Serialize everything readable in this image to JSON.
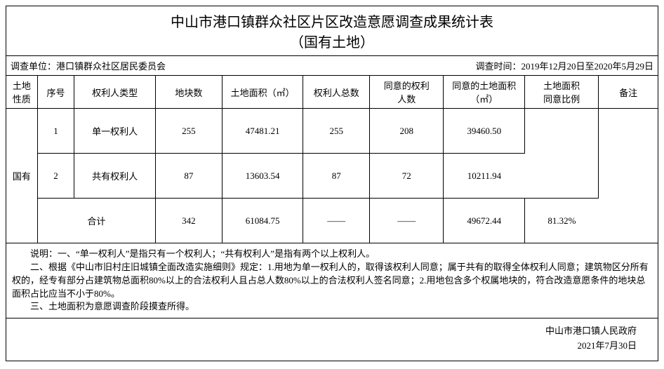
{
  "title": "中山市港口镇群众社区片区改造意愿调查成果统计表",
  "subtitle": "（国有土地）",
  "meta": {
    "survey_unit_label": "调查单位：港口镇群众社区居民委员会",
    "survey_time_label": "调查时间：2019年12月20日至2020年5月29日"
  },
  "headers": {
    "nature": "土地\n性质",
    "seq": "序号",
    "type": "权利人类型",
    "plots": "地块数",
    "area": "土地面积（㎡）",
    "total_owners": "权利人总数",
    "agree_owners": "同意的权利\n人数",
    "agree_area": "同意的土地面积\n（㎡）",
    "ratio": "土地面积\n同意比例",
    "note": "备注"
  },
  "nature_value": "国有",
  "rows": [
    {
      "seq": "1",
      "type": "单一权利人",
      "plots": "255",
      "area": "47481.21",
      "total": "255",
      "agree": "208",
      "agree_area": "39460.50",
      "ratio": "",
      "note": ""
    },
    {
      "seq": "2",
      "type": "共有权利人",
      "plots": "87",
      "area": "13603.54",
      "total": "87",
      "agree": "72",
      "agree_area": "10211.94",
      "ratio": "",
      "note": ""
    }
  ],
  "total_row": {
    "label": "合计",
    "plots": "342",
    "area": "61084.75",
    "total": "——",
    "agree": "——",
    "agree_area": "49672.44",
    "ratio": "81.32%",
    "note": ""
  },
  "notes": {
    "n1": "说明：一、“单一权利人”是指只有一个权利人；“共有权利人”是指有两个以上权利人。",
    "n2": "二、根据《中山市旧村庄旧城镇全面改造实施细则》规定：1.用地为单一权利人的，取得该权利人同意；属于共有的取得全体权利人同意；建筑物区分所有权的，经专有部分占建筑物总面积80%以上的合法权利人且占总人数80%以上的合法权利人签名同意；2.用地包含多个权属地块的，符合改造意愿条件的地块总面积占比应当不小于80%。",
    "n3": "三、土地面积为意愿调查阶段摸查所得。"
  },
  "signature": {
    "org": "中山市港口镇人民政府",
    "date": "2021年7月30日"
  }
}
